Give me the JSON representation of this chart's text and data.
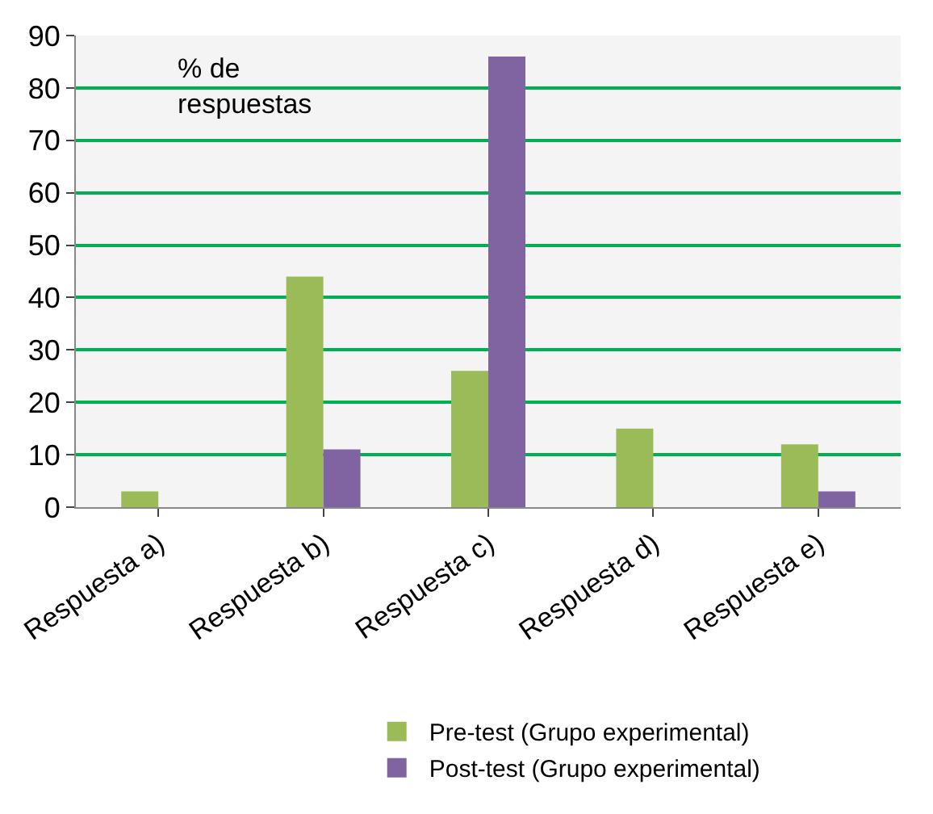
{
  "chart_data": {
    "type": "bar",
    "categories": [
      "Respuesta a)",
      "Respuesta b)",
      "Respuesta c)",
      "Respuesta d)",
      "Respuesta e)"
    ],
    "series": [
      {
        "name": "Pre-test (Grupo experimental)",
        "color": "#9bbb59",
        "values": [
          3,
          44,
          26,
          15,
          12
        ]
      },
      {
        "name": "Post-test (Grupo experimental)",
        "color": "#8064a2",
        "values": [
          0,
          11,
          86,
          0,
          3
        ]
      }
    ],
    "annotations": [
      "% de\nrespuestas"
    ],
    "ylim": [
      0,
      90
    ],
    "yticks": [
      0,
      10,
      20,
      30,
      40,
      50,
      60,
      70,
      80,
      90
    ],
    "grid": "y",
    "legend": "bottom"
  }
}
